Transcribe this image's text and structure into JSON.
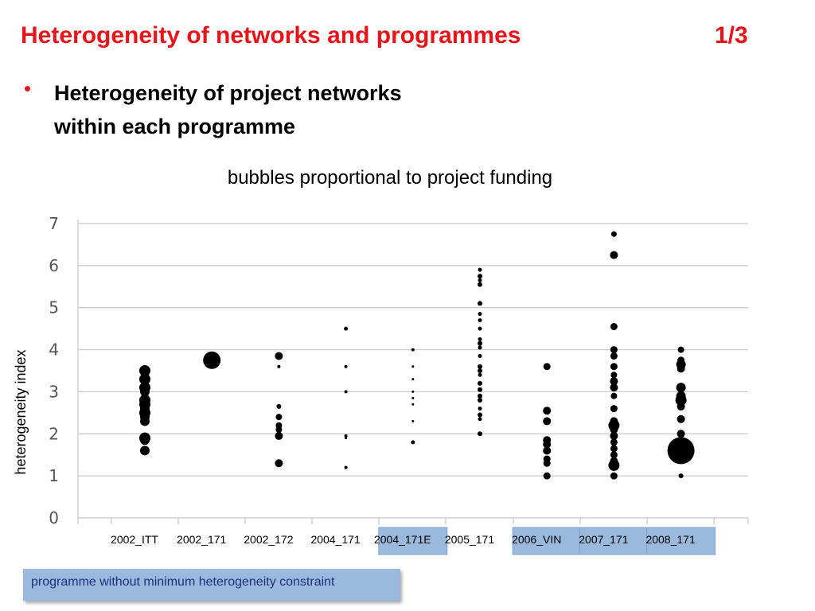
{
  "slide": {
    "title": "Heterogeneity of networks and programmes",
    "page": "1/3",
    "bullet_marker": "•",
    "bullet_line1": "Heterogeneity of project networks",
    "bullet_line2": "within each programme",
    "subtitle": "bubbles proportional to project funding",
    "note": "programme without minimum heterogeneity constraint",
    "colors": {
      "title": "#e8141a",
      "highlight": "#9bb8dd",
      "note_text": "#1f2f80"
    }
  },
  "chart_data": {
    "type": "scatter",
    "subtype": "bubble",
    "ylabel": "heterogeneity index",
    "ylim": [
      0,
      7
    ],
    "yticks": [
      "0",
      "1",
      "2",
      "3",
      "4",
      "5",
      "6",
      "7"
    ],
    "grid": true,
    "categories": [
      "2002_ITT",
      "2002_171",
      "2002_172",
      "2004_171",
      "2004_171E",
      "2005_171",
      "2006_VIN",
      "2007_171",
      "2008_171"
    ],
    "highlighted_categories": [
      "2004_171E",
      "2006_VIN",
      "2007_171",
      "2008_171"
    ],
    "points": [
      {
        "category": "2002_ITT",
        "y": 3.5,
        "size": 7
      },
      {
        "category": "2002_ITT",
        "y": 3.3,
        "size": 7
      },
      {
        "category": "2002_ITT",
        "y": 3.1,
        "size": 7
      },
      {
        "category": "2002_ITT",
        "y": 3.0,
        "size": 6
      },
      {
        "category": "2002_ITT",
        "y": 2.8,
        "size": 7
      },
      {
        "category": "2002_ITT",
        "y": 2.7,
        "size": 7
      },
      {
        "category": "2002_ITT",
        "y": 2.6,
        "size": 6
      },
      {
        "category": "2002_ITT",
        "y": 2.5,
        "size": 7
      },
      {
        "category": "2002_ITT",
        "y": 2.4,
        "size": 6
      },
      {
        "category": "2002_ITT",
        "y": 2.3,
        "size": 6
      },
      {
        "category": "2002_ITT",
        "y": 1.9,
        "size": 7
      },
      {
        "category": "2002_ITT",
        "y": 1.85,
        "size": 6
      },
      {
        "category": "2002_ITT",
        "y": 1.6,
        "size": 6
      },
      {
        "category": "2002_171",
        "y": 3.75,
        "size": 11
      },
      {
        "category": "2002_172",
        "y": 3.85,
        "size": 5
      },
      {
        "category": "2002_172",
        "y": 3.6,
        "size": 2
      },
      {
        "category": "2002_172",
        "y": 2.65,
        "size": 3
      },
      {
        "category": "2002_172",
        "y": 2.4,
        "size": 4
      },
      {
        "category": "2002_172",
        "y": 2.2,
        "size": 4
      },
      {
        "category": "2002_172",
        "y": 2.1,
        "size": 4
      },
      {
        "category": "2002_172",
        "y": 1.95,
        "size": 5
      },
      {
        "category": "2002_172",
        "y": 1.3,
        "size": 5
      },
      {
        "category": "2004_171",
        "y": 4.5,
        "size": 2.5
      },
      {
        "category": "2004_171",
        "y": 3.6,
        "size": 2
      },
      {
        "category": "2004_171",
        "y": 3.0,
        "size": 2
      },
      {
        "category": "2004_171",
        "y": 1.95,
        "size": 2
      },
      {
        "category": "2004_171",
        "y": 1.9,
        "size": 1.5
      },
      {
        "category": "2004_171",
        "y": 1.2,
        "size": 2
      },
      {
        "category": "2004_171E",
        "y": 4.0,
        "size": 2
      },
      {
        "category": "2004_171E",
        "y": 3.6,
        "size": 1.5
      },
      {
        "category": "2004_171E",
        "y": 3.3,
        "size": 1.5
      },
      {
        "category": "2004_171E",
        "y": 3.0,
        "size": 1.5
      },
      {
        "category": "2004_171E",
        "y": 2.85,
        "size": 1.5
      },
      {
        "category": "2004_171E",
        "y": 2.7,
        "size": 1.5
      },
      {
        "category": "2004_171E",
        "y": 2.3,
        "size": 1.5
      },
      {
        "category": "2004_171E",
        "y": 1.8,
        "size": 2.5
      },
      {
        "category": "2005_171",
        "y": 5.9,
        "size": 2.5
      },
      {
        "category": "2005_171",
        "y": 5.75,
        "size": 3
      },
      {
        "category": "2005_171",
        "y": 5.65,
        "size": 2.5
      },
      {
        "category": "2005_171",
        "y": 5.55,
        "size": 3
      },
      {
        "category": "2005_171",
        "y": 5.1,
        "size": 3
      },
      {
        "category": "2005_171",
        "y": 4.85,
        "size": 2.5
      },
      {
        "category": "2005_171",
        "y": 4.7,
        "size": 2.5
      },
      {
        "category": "2005_171",
        "y": 4.5,
        "size": 2.5
      },
      {
        "category": "2005_171",
        "y": 4.25,
        "size": 2.5
      },
      {
        "category": "2005_171",
        "y": 4.15,
        "size": 3
      },
      {
        "category": "2005_171",
        "y": 4.05,
        "size": 2.5
      },
      {
        "category": "2005_171",
        "y": 3.85,
        "size": 2.5
      },
      {
        "category": "2005_171",
        "y": 3.6,
        "size": 3
      },
      {
        "category": "2005_171",
        "y": 3.5,
        "size": 3
      },
      {
        "category": "2005_171",
        "y": 3.4,
        "size": 2.5
      },
      {
        "category": "2005_171",
        "y": 3.2,
        "size": 3
      },
      {
        "category": "2005_171",
        "y": 3.05,
        "size": 3
      },
      {
        "category": "2005_171",
        "y": 2.9,
        "size": 3
      },
      {
        "category": "2005_171",
        "y": 2.8,
        "size": 3
      },
      {
        "category": "2005_171",
        "y": 2.6,
        "size": 2.5
      },
      {
        "category": "2005_171",
        "y": 2.45,
        "size": 3
      },
      {
        "category": "2005_171",
        "y": 2.35,
        "size": 2.5
      },
      {
        "category": "2005_171",
        "y": 2.0,
        "size": 3
      },
      {
        "category": "2006_VIN",
        "y": 3.6,
        "size": 4.5
      },
      {
        "category": "2006_VIN",
        "y": 2.55,
        "size": 5
      },
      {
        "category": "2006_VIN",
        "y": 2.3,
        "size": 5
      },
      {
        "category": "2006_VIN",
        "y": 1.85,
        "size": 5
      },
      {
        "category": "2006_VIN",
        "y": 1.75,
        "size": 5
      },
      {
        "category": "2006_VIN",
        "y": 1.6,
        "size": 5
      },
      {
        "category": "2006_VIN",
        "y": 1.4,
        "size": 4.5
      },
      {
        "category": "2006_VIN",
        "y": 1.3,
        "size": 4.5
      },
      {
        "category": "2006_VIN",
        "y": 1.0,
        "size": 4.5
      },
      {
        "category": "2007_171",
        "y": 6.75,
        "size": 3.5
      },
      {
        "category": "2007_171",
        "y": 6.25,
        "size": 5
      },
      {
        "category": "2007_171",
        "y": 4.55,
        "size": 4.5
      },
      {
        "category": "2007_171",
        "y": 4.0,
        "size": 4.5
      },
      {
        "category": "2007_171",
        "y": 3.85,
        "size": 4.5
      },
      {
        "category": "2007_171",
        "y": 3.6,
        "size": 4.5
      },
      {
        "category": "2007_171",
        "y": 3.4,
        "size": 4
      },
      {
        "category": "2007_171",
        "y": 3.25,
        "size": 5
      },
      {
        "category": "2007_171",
        "y": 3.1,
        "size": 5
      },
      {
        "category": "2007_171",
        "y": 2.9,
        "size": 4
      },
      {
        "category": "2007_171",
        "y": 2.6,
        "size": 4.5
      },
      {
        "category": "2007_171",
        "y": 2.3,
        "size": 5
      },
      {
        "category": "2007_171",
        "y": 2.2,
        "size": 7
      },
      {
        "category": "2007_171",
        "y": 2.1,
        "size": 5
      },
      {
        "category": "2007_171",
        "y": 1.95,
        "size": 5
      },
      {
        "category": "2007_171",
        "y": 1.8,
        "size": 4.5
      },
      {
        "category": "2007_171",
        "y": 1.65,
        "size": 4.5
      },
      {
        "category": "2007_171",
        "y": 1.5,
        "size": 4.5
      },
      {
        "category": "2007_171",
        "y": 1.35,
        "size": 5
      },
      {
        "category": "2007_171",
        "y": 1.25,
        "size": 7
      },
      {
        "category": "2007_171",
        "y": 1.0,
        "size": 4.5
      },
      {
        "category": "2008_171",
        "y": 4.0,
        "size": 4
      },
      {
        "category": "2008_171",
        "y": 3.75,
        "size": 4.5
      },
      {
        "category": "2008_171",
        "y": 3.65,
        "size": 6
      },
      {
        "category": "2008_171",
        "y": 3.55,
        "size": 5
      },
      {
        "category": "2008_171",
        "y": 3.1,
        "size": 6
      },
      {
        "category": "2008_171",
        "y": 2.9,
        "size": 6
      },
      {
        "category": "2008_171",
        "y": 2.8,
        "size": 7
      },
      {
        "category": "2008_171",
        "y": 2.65,
        "size": 5
      },
      {
        "category": "2008_171",
        "y": 2.35,
        "size": 5
      },
      {
        "category": "2008_171",
        "y": 2.0,
        "size": 5
      },
      {
        "category": "2008_171",
        "y": 1.8,
        "size": 5
      },
      {
        "category": "2008_171",
        "y": 1.6,
        "size": 17
      },
      {
        "category": "2008_171",
        "y": 1.0,
        "size": 3
      }
    ]
  }
}
